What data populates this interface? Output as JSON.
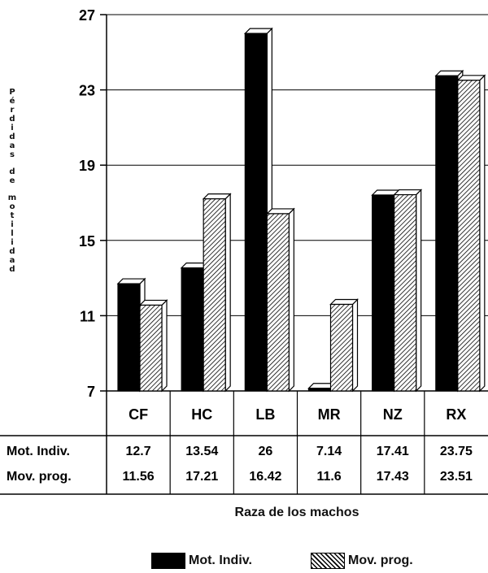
{
  "chart_data": {
    "type": "bar",
    "categories": [
      "CF",
      "HC",
      "LB",
      "MR",
      "NZ",
      "RX"
    ],
    "series": [
      {
        "name": "Mot. Indiv.",
        "values": [
          12.7,
          13.54,
          26,
          7.14,
          17.41,
          23.75
        ],
        "fill": "solid-black"
      },
      {
        "name": "Mov. prog.",
        "values": [
          11.56,
          17.21,
          16.42,
          11.6,
          17.43,
          23.51
        ],
        "fill": "hatched"
      }
    ],
    "table_rows": [
      {
        "label": "Mot. Indiv.",
        "cells": [
          "12.7",
          "13.54",
          "26",
          "7.14",
          "17.41",
          "23.75"
        ]
      },
      {
        "label": "Mov. prog.",
        "cells": [
          "11.56",
          "17.21",
          "16.42",
          "11.6",
          "17.43",
          "23.51"
        ]
      }
    ],
    "yticks": [
      "7",
      "11",
      "15",
      "19",
      "23",
      "27"
    ],
    "ylim": [
      7,
      27
    ],
    "ylabel_words": [
      "Pérdidas",
      "de",
      "motilidad"
    ],
    "xlabel": "Raza de los machos",
    "legend_position": "bottom",
    "grid": true,
    "style": "3d-bar"
  },
  "colors": {
    "series_solid": "#000000",
    "series_hatch_stroke": "#000000",
    "background": "#ffffff",
    "grid": "#000000"
  }
}
